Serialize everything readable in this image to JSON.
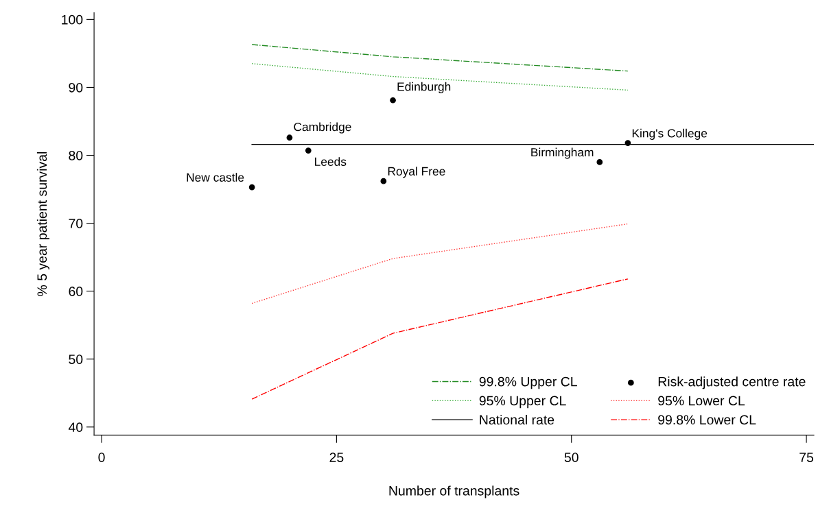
{
  "chart_data": {
    "type": "line",
    "xlabel": "Number of transplants",
    "ylabel": "% 5 year patient survival",
    "xlim": [
      -0.8,
      75.8
    ],
    "xticks": [
      0,
      25,
      50,
      75
    ],
    "ylim": [
      38.8,
      101
    ],
    "yticks": [
      40,
      50,
      60,
      70,
      80,
      90,
      100
    ],
    "grid": false,
    "legend": "bottom right",
    "series": [
      {
        "name": "99.8% Upper CL",
        "color": "#228b22",
        "line_style": "dashdot",
        "x": [
          16,
          31,
          56
        ],
        "values": [
          96.3,
          94.5,
          92.4
        ]
      },
      {
        "name": "95% Upper CL",
        "color": "#33aa33",
        "line_style": "dotted",
        "x": [
          16,
          31,
          56
        ],
        "values": [
          93.5,
          91.6,
          89.6
        ]
      },
      {
        "name": "National rate",
        "color": "#000000",
        "line_style": "solid",
        "x": [
          16,
          75.8
        ],
        "values": [
          81.6,
          81.6
        ]
      },
      {
        "name": "Risk-adjusted centre rate",
        "type": "scatter",
        "color": "#000000",
        "marker": "circle",
        "x": [
          16,
          20,
          22,
          30,
          31,
          53,
          56
        ],
        "values": [
          75.3,
          82.6,
          80.7,
          76.2,
          88.1,
          79.0,
          81.8
        ]
      },
      {
        "name": "95% Lower CL",
        "color": "#ff3333",
        "line_style": "dotted",
        "x": [
          16,
          31,
          56
        ],
        "values": [
          58.2,
          64.8,
          69.9
        ]
      },
      {
        "name": "99.8% Lower CL",
        "color": "#ff0000",
        "line_style": "dashdot",
        "x": [
          16,
          31,
          56
        ],
        "values": [
          44.1,
          53.8,
          61.8
        ]
      }
    ],
    "annotations": [
      {
        "text": "New castle",
        "x": 16,
        "y": 75.3
      },
      {
        "text": "Cambridge",
        "x": 20,
        "y": 82.6
      },
      {
        "text": "Leeds",
        "x": 22,
        "y": 80.7
      },
      {
        "text": "Royal Free",
        "x": 30,
        "y": 76.2
      },
      {
        "text": "Edinburgh",
        "x": 31,
        "y": 88.1
      },
      {
        "text": "Birmingham",
        "x": 53,
        "y": 79.0
      },
      {
        "text": "King's College",
        "x": 56,
        "y": 81.8
      }
    ]
  }
}
